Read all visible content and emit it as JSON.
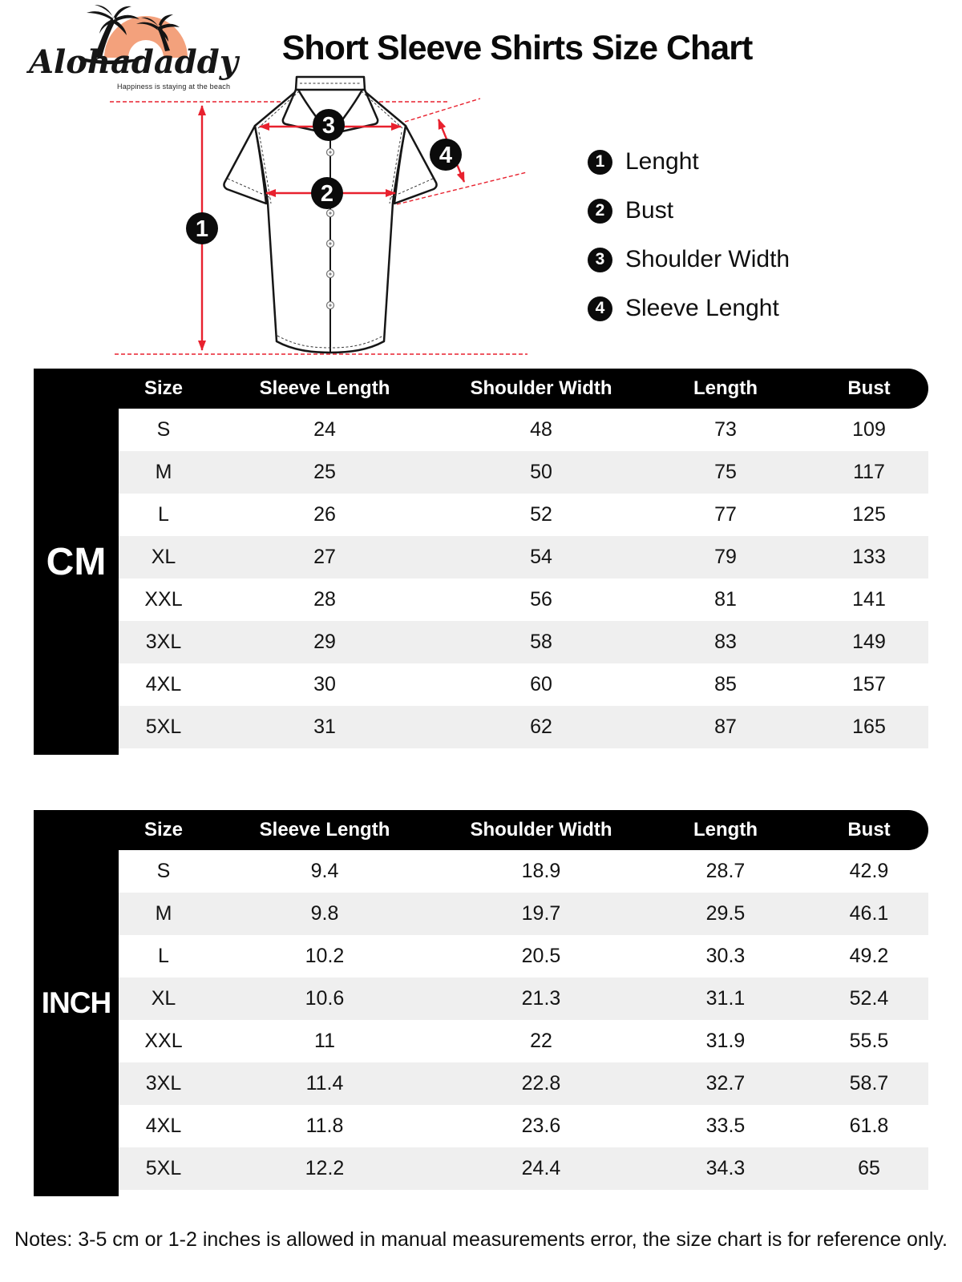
{
  "brand": {
    "name": "Alohadaddy",
    "tagline": "Happiness is staying at the beach"
  },
  "title": "Short Sleeve Shirts Size Chart",
  "legend": {
    "items": [
      {
        "num": "1",
        "label": "Lenght"
      },
      {
        "num": "2",
        "label": "Bust"
      },
      {
        "num": "3",
        "label": "Shoulder Width"
      },
      {
        "num": "4",
        "label": "Sleeve Lenght"
      }
    ]
  },
  "tables": [
    {
      "unit": "CM",
      "columns": [
        "Size",
        "Sleeve Length",
        "Shoulder Width",
        "Length",
        "Bust"
      ],
      "rows": [
        [
          "S",
          "24",
          "48",
          "73",
          "109"
        ],
        [
          "M",
          "25",
          "50",
          "75",
          "117"
        ],
        [
          "L",
          "26",
          "52",
          "77",
          "125"
        ],
        [
          "XL",
          "27",
          "54",
          "79",
          "133"
        ],
        [
          "XXL",
          "28",
          "56",
          "81",
          "141"
        ],
        [
          "3XL",
          "29",
          "58",
          "83",
          "149"
        ],
        [
          "4XL",
          "30",
          "60",
          "85",
          "157"
        ],
        [
          "5XL",
          "31",
          "62",
          "87",
          "165"
        ]
      ]
    },
    {
      "unit": "INCH",
      "columns": [
        "Size",
        "Sleeve Length",
        "Shoulder Width",
        "Length",
        "Bust"
      ],
      "rows": [
        [
          "S",
          "9.4",
          "18.9",
          "28.7",
          "42.9"
        ],
        [
          "M",
          "9.8",
          "19.7",
          "29.5",
          "46.1"
        ],
        [
          "L",
          "10.2",
          "20.5",
          "30.3",
          "49.2"
        ],
        [
          "XL",
          "10.6",
          "21.3",
          "31.1",
          "52.4"
        ],
        [
          "XXL",
          "11",
          "22",
          "31.9",
          "55.5"
        ],
        [
          "3XL",
          "11.4",
          "22.8",
          "32.7",
          "58.7"
        ],
        [
          "4XL",
          "11.8",
          "23.6",
          "33.5",
          "61.8"
        ],
        [
          "5XL",
          "12.2",
          "24.4",
          "34.3",
          "65"
        ]
      ]
    }
  ],
  "notes": "Notes: 3-5 cm or 1-2 inches is allowed in manual measurements error, the size chart is for reference only.",
  "colors": {
    "accent_red": "#E8212E",
    "logo_orange": "#F3A17C",
    "row_alt_gray": "#EFEFEF",
    "table_black": "#000000"
  }
}
